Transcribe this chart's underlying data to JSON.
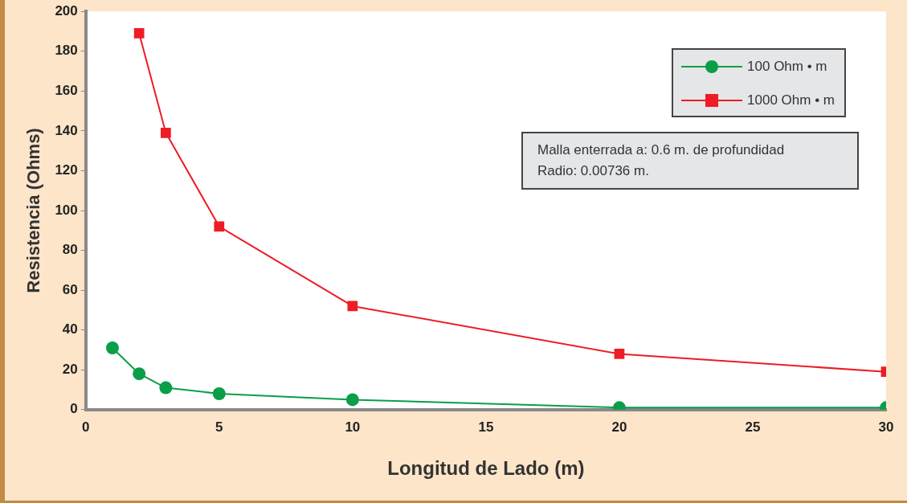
{
  "chart_data": {
    "type": "line",
    "xlabel": "Longitud de Lado (m)",
    "ylabel": "Resistencia (Ohms)",
    "xlim": [
      0,
      30
    ],
    "xticks": [
      0,
      5,
      10,
      15,
      20,
      25,
      30
    ],
    "ylim": [
      0,
      200
    ],
    "yticks": [
      0,
      20,
      40,
      60,
      80,
      100,
      120,
      140,
      160,
      180,
      200
    ],
    "grid": false,
    "legend": "top right",
    "series": [
      {
        "name": "100 Ohm • m",
        "color": "#0a9e48",
        "marker": "circle",
        "x": [
          1,
          2,
          3,
          5,
          10,
          20,
          30
        ],
        "values": [
          31,
          18,
          11,
          8,
          5,
          1,
          1
        ]
      },
      {
        "name": "1000 Ohm • m",
        "color": "#ee1c25",
        "marker": "square",
        "x": [
          2,
          3,
          5,
          10,
          20,
          30
        ],
        "values": [
          189,
          139,
          92,
          52,
          28,
          19
        ]
      }
    ],
    "annotations": [
      "Malla enterrada a: 0.6 m. de profundidad",
      "Radio: 0.00736 m."
    ]
  }
}
